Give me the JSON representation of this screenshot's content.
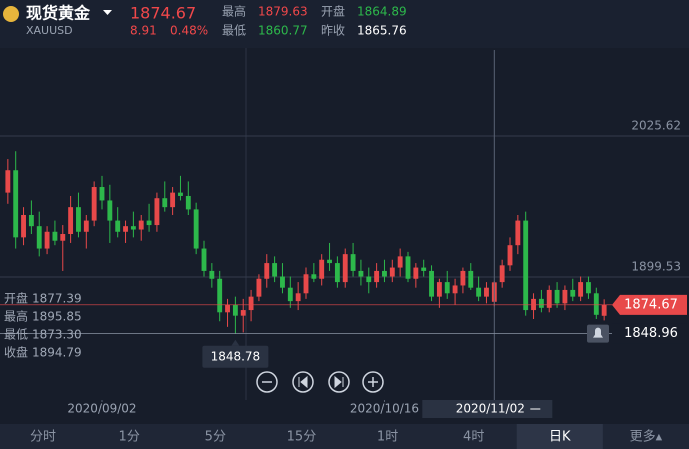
{
  "header": {
    "name": "现货黄金",
    "symbol": "XAUUSD",
    "price": "1874.67",
    "change": "8.91",
    "change_pct": "0.48%",
    "stats": [
      {
        "label": "最高",
        "value": "1879.63"
      },
      {
        "label": "开盘",
        "value": "1864.89"
      },
      {
        "label": "最低",
        "value": "1860.77"
      },
      {
        "label": "昨收",
        "value": "1865.76"
      }
    ]
  },
  "ohlc_panel": [
    {
      "label": "开盘",
      "value": "1877.39"
    },
    {
      "label": "最高",
      "value": "1895.85"
    },
    {
      "label": "最低",
      "value": "1873.30"
    },
    {
      "label": "收盘",
      "value": "1894.79"
    }
  ],
  "chart_data": {
    "type": "candlestick",
    "up_color": "#e8494a",
    "down_color": "#2db84b",
    "xlim": [
      -1,
      77
    ],
    "ylim": [
      1789.6,
      2102.5
    ],
    "yticks": [
      2025.62,
      1899.53
    ],
    "xticks": [
      {
        "value": 12,
        "label": "2020/09/02"
      },
      {
        "value": 48,
        "label": "2020/10/16"
      },
      {
        "value": 62,
        "label": "2020/11/02"
      }
    ],
    "crosshair": 2,
    "alert_price": 1848.96,
    "low_marker": 29,
    "open": [
      1975,
      1995,
      1935,
      1955,
      1945,
      1925,
      1940,
      1932,
      1938,
      1962,
      1940,
      1950,
      1980,
      1968,
      1950,
      1940,
      1945,
      1942,
      1950,
      1946,
      1970,
      1962,
      1975,
      1972,
      1960,
      1925,
      1905,
      1898,
      1868,
      1875,
      1865,
      1870,
      1882,
      1898,
      1912,
      1900,
      1890,
      1878,
      1885,
      1902,
      1898,
      1915,
      1912,
      1895,
      1920,
      1905,
      1900,
      1895,
      1905,
      1900,
      1908,
      1918,
      1898,
      1908,
      1905,
      1882,
      1895,
      1885,
      1892,
      1905,
      1890,
      1882,
      1877.39,
      1895,
      1910,
      1928,
      1950,
      1870,
      1880,
      1872,
      1888,
      1876,
      1888,
      1882,
      1895,
      1885,
      1864.89
    ],
    "high": [
      2005,
      2012,
      1962,
      1968,
      1958,
      1945,
      1950,
      1946,
      1972,
      1975,
      1955,
      1985,
      1990,
      1982,
      1962,
      1950,
      1958,
      1955,
      1965,
      1975,
      1985,
      1980,
      1990,
      1985,
      1966,
      1932,
      1912,
      1905,
      1880,
      1882,
      1880,
      1888,
      1902,
      1920,
      1918,
      1912,
      1900,
      1895,
      1908,
      1912,
      1920,
      1930,
      1918,
      1925,
      1930,
      1915,
      1908,
      1912,
      1915,
      1915,
      1925,
      1922,
      1912,
      1915,
      1910,
      1898,
      1905,
      1898,
      1908,
      1912,
      1900,
      1895,
      1895.85,
      1915,
      1935,
      1955,
      1958,
      1885,
      1888,
      1892,
      1895,
      1892,
      1898,
      1900,
      1900,
      1890,
      1879.63
    ],
    "low": [
      1965,
      1925,
      1928,
      1938,
      1918,
      1920,
      1928,
      1905,
      1930,
      1935,
      1925,
      1945,
      1960,
      1930,
      1935,
      1930,
      1935,
      1932,
      1940,
      1940,
      1958,
      1955,
      1968,
      1955,
      1920,
      1900,
      1890,
      1860,
      1855,
      1848.78,
      1850,
      1860,
      1878,
      1890,
      1895,
      1885,
      1872,
      1870,
      1880,
      1895,
      1892,
      1905,
      1890,
      1890,
      1900,
      1892,
      1885,
      1890,
      1895,
      1895,
      1900,
      1895,
      1890,
      1900,
      1878,
      1872,
      1880,
      1875,
      1885,
      1888,
      1878,
      1876,
      1873.3,
      1890,
      1905,
      1920,
      1865,
      1862,
      1868,
      1868,
      1872,
      1870,
      1878,
      1878,
      1880,
      1862,
      1860.77
    ],
    "close": [
      1995,
      1935,
      1955,
      1945,
      1925,
      1940,
      1932,
      1938,
      1962,
      1940,
      1950,
      1980,
      1968,
      1950,
      1940,
      1945,
      1942,
      1950,
      1946,
      1970,
      1962,
      1975,
      1972,
      1960,
      1925,
      1905,
      1898,
      1868,
      1875,
      1865,
      1870,
      1882,
      1898,
      1912,
      1900,
      1890,
      1878,
      1885,
      1902,
      1898,
      1915,
      1912,
      1895,
      1920,
      1905,
      1900,
      1895,
      1905,
      1900,
      1908,
      1918,
      1898,
      1908,
      1905,
      1882,
      1895,
      1885,
      1892,
      1905,
      1890,
      1882,
      1890,
      1894.79,
      1910,
      1928,
      1950,
      1870,
      1880,
      1872,
      1888,
      1876,
      1888,
      1882,
      1895,
      1885,
      1865.76,
      1874.67
    ]
  },
  "timeframes": [
    "分时",
    "1分",
    "5分",
    "15分",
    "1时",
    "4时",
    "日K",
    "更多▴"
  ],
  "active_timeframe": 6
}
